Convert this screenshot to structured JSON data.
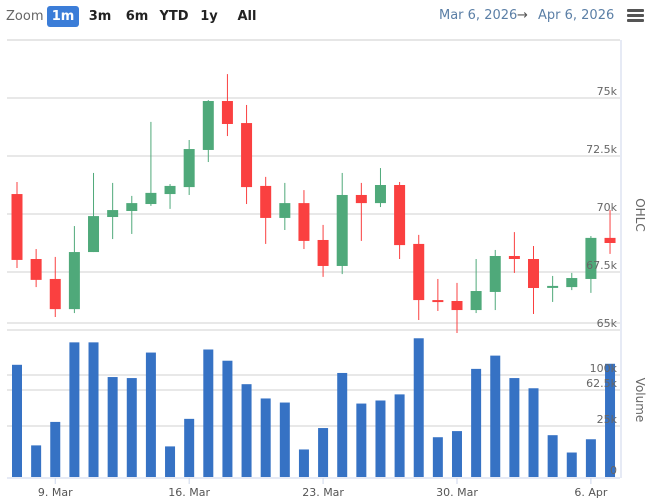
{
  "toolbar": {
    "zoom_label": "Zoom",
    "buttons": [
      {
        "label": "1m",
        "active": true
      },
      {
        "label": "3m",
        "active": false
      },
      {
        "label": "6m",
        "active": false
      },
      {
        "label": "YTD",
        "active": false
      },
      {
        "label": "1y",
        "active": false
      },
      {
        "label": "All",
        "active": false
      }
    ],
    "date_from": "Mar 6, 2026",
    "arrow": "→",
    "date_to": "Apr 6, 2026",
    "menu_icon": "hamburger-menu-icon"
  },
  "colors": {
    "up": "#4fa97a",
    "down": "#fa4040",
    "volume": "#3672c4",
    "grid": "#d0d0d0",
    "accent": "#3b7dd8"
  },
  "chart_data": [
    {
      "type": "candlestick",
      "title": "",
      "ylabel": "OHLC",
      "ylim": [
        64.5,
        77
      ],
      "yticks": [
        {
          "value": 65,
          "label": "65k"
        },
        {
          "value": 67.5,
          "label": "67.5k"
        },
        {
          "value": 70,
          "label": "70k"
        },
        {
          "value": 72.5,
          "label": "72.5k"
        },
        {
          "value": 75,
          "label": "75k"
        }
      ],
      "unit": "thousands",
      "x_start": "Mar 7",
      "xticks": [
        {
          "index": 2,
          "label": "9. Mar"
        },
        {
          "index": 9,
          "label": "16. Mar"
        },
        {
          "index": 16,
          "label": "23. Mar"
        },
        {
          "index": 23,
          "label": "30. Mar"
        },
        {
          "index": 30,
          "label": "6. Apr"
        }
      ],
      "ohlc": [
        [
          70.86,
          71.38,
          67.67,
          68.02
        ],
        [
          68.06,
          68.49,
          66.85,
          67.16
        ],
        [
          67.2,
          68.15,
          65.56,
          65.9
        ],
        [
          65.9,
          69.48,
          65.73,
          68.36
        ],
        [
          68.36,
          71.77,
          68.36,
          69.91
        ],
        [
          69.87,
          71.34,
          68.92,
          70.17
        ],
        [
          70.13,
          70.78,
          69.14,
          70.47
        ],
        [
          70.43,
          73.97,
          70.35,
          70.91
        ],
        [
          70.86,
          71.29,
          70.22,
          71.21
        ],
        [
          71.16,
          73.19,
          70.82,
          72.8
        ],
        [
          72.76,
          74.91,
          72.24,
          74.87
        ],
        [
          74.87,
          76.03,
          73.36,
          73.88
        ],
        [
          73.92,
          74.7,
          70.43,
          71.16
        ],
        [
          71.21,
          71.6,
          68.71,
          69.83
        ],
        [
          69.83,
          71.34,
          69.31,
          70.47
        ],
        [
          70.47,
          71.03,
          68.49,
          68.84
        ],
        [
          68.88,
          69.53,
          67.29,
          67.76
        ],
        [
          67.76,
          71.77,
          67.41,
          70.82
        ],
        [
          70.82,
          71.34,
          68.84,
          70.47
        ],
        [
          70.47,
          71.98,
          70.3,
          71.25
        ],
        [
          71.25,
          71.38,
          68.06,
          68.66
        ],
        [
          68.71,
          69.1,
          65.43,
          66.29
        ],
        [
          66.29,
          67.2,
          65.82,
          66.21
        ],
        [
          66.25,
          67.03,
          64.87,
          65.86
        ],
        [
          65.86,
          68.06,
          65.73,
          66.68
        ],
        [
          66.64,
          68.45,
          65.86,
          68.19
        ],
        [
          68.19,
          69.22,
          67.46,
          68.06
        ],
        [
          68.06,
          68.62,
          65.69,
          66.81
        ],
        [
          66.85,
          67.33,
          66.21,
          66.9
        ],
        [
          66.85,
          67.46,
          66.72,
          67.24
        ],
        [
          67.2,
          69.05,
          66.6,
          68.97
        ],
        [
          68.97,
          70.17,
          68.28,
          68.75
        ]
      ]
    },
    {
      "type": "bar",
      "ylabel": "Volume",
      "yticks": [
        {
          "value": 0,
          "label": "0"
        },
        {
          "value": 25,
          "label": "25k"
        },
        {
          "value": 62.5,
          "label": "62.5k"
        },
        {
          "value": 100,
          "label": "100k"
        }
      ],
      "unit": "thousands",
      "values": [
        110,
        31,
        54,
        132,
        132,
        98,
        97,
        122,
        30,
        57,
        125,
        114,
        91,
        77,
        73,
        27,
        48,
        102,
        72,
        75,
        81,
        136,
        39,
        45,
        106,
        119,
        97,
        87,
        41,
        24,
        37,
        111
      ]
    }
  ]
}
